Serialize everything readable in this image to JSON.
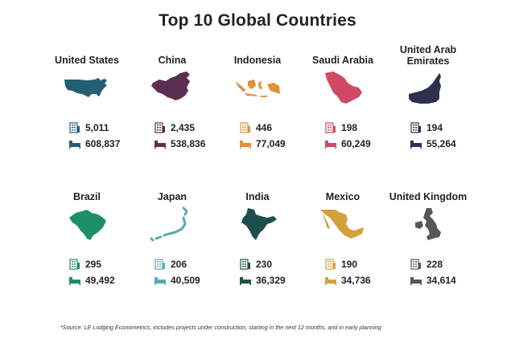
{
  "title": "Top 10 Global Countries",
  "source": "*Source: LE Lodging Econometrics, includes projects under construction, starting in the next 12 months, and in early planning",
  "icons": {
    "hotels": "building-icon",
    "rooms": "bed-icon"
  },
  "countries": [
    {
      "name": "United States",
      "hotels": "5,011",
      "rooms": "608,837",
      "color": "#245e74",
      "map": "usa-map"
    },
    {
      "name": "China",
      "hotels": "2,435",
      "rooms": "538,836",
      "color": "#5b2f52",
      "map": "china-map"
    },
    {
      "name": "Indonesia",
      "hotels": "446",
      "rooms": "77,049",
      "color": "#e0913a",
      "map": "indonesia-map"
    },
    {
      "name": "Saudi Arabia",
      "hotels": "198",
      "rooms": "60,249",
      "color": "#cf4a62",
      "map": "saudi-arabia-map"
    },
    {
      "name": "United Arab Emirates",
      "hotels": "194",
      "rooms": "55,264",
      "color": "#2f2f4f",
      "map": "uae-map"
    },
    {
      "name": "Brazil",
      "hotels": "295",
      "rooms": "49,492",
      "color": "#1d8f6b",
      "map": "brazil-map"
    },
    {
      "name": "Japan",
      "hotels": "206",
      "rooms": "40,509",
      "color": "#5aaab0",
      "map": "japan-map"
    },
    {
      "name": "India",
      "hotels": "230",
      "rooms": "36,329",
      "color": "#1f4f4a",
      "map": "india-map"
    },
    {
      "name": "Mexico",
      "hotels": "190",
      "rooms": "34,736",
      "color": "#d2a03c",
      "map": "mexico-map"
    },
    {
      "name": "United Kingdom",
      "hotels": "228",
      "rooms": "34,614",
      "color": "#56575b",
      "map": "united-kingdom-map"
    }
  ]
}
